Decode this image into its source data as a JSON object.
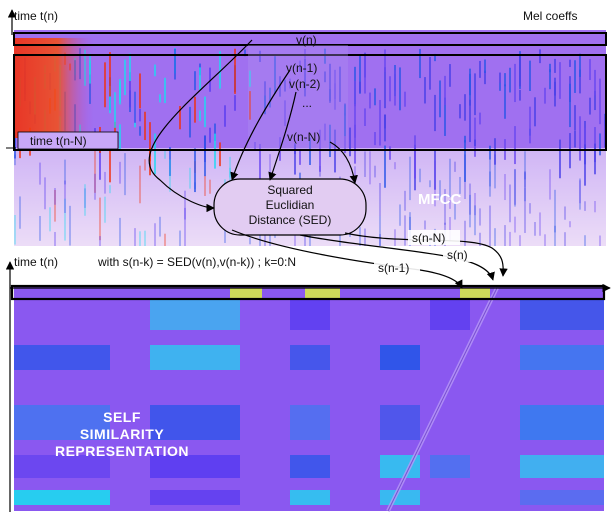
{
  "labels": {
    "time_top": "time t(n)",
    "mel_coeffs": "Mel coeffs",
    "v_n": "v(n)",
    "v_n1": "v(n-1)",
    "v_n2": "v(n-2)",
    "v_dots": "...",
    "v_nN": "v(n-N)",
    "time_nN": "time t(n-N)",
    "sed": [
      "Squared",
      "Euclidian",
      "Distance (SED)"
    ],
    "mfcc": "MFCC",
    "s_nN": "s(n-N)",
    "s_n": "s(n)",
    "s_n1": "s(n-1)",
    "time_mid": "time t(n)",
    "formula": "with s(n-k) = SED(v(n),v(n-k)) ; k=0:N",
    "ssr": [
      "SELF",
      "SIMILARITY",
      "REPRESENTATION"
    ]
  },
  "colors": {
    "mfcc_base": "#a070f0",
    "mfcc_light": "#e6d2f5",
    "ssr_base": "#8a58f0",
    "ssr_cyan": "#1fd8f0",
    "ssr_blue": "#2a55e8",
    "hot": "#f03010",
    "frame": "#000000"
  },
  "icons": [
    "axis-arrow-icon",
    "flow-arrow-icon"
  ]
}
